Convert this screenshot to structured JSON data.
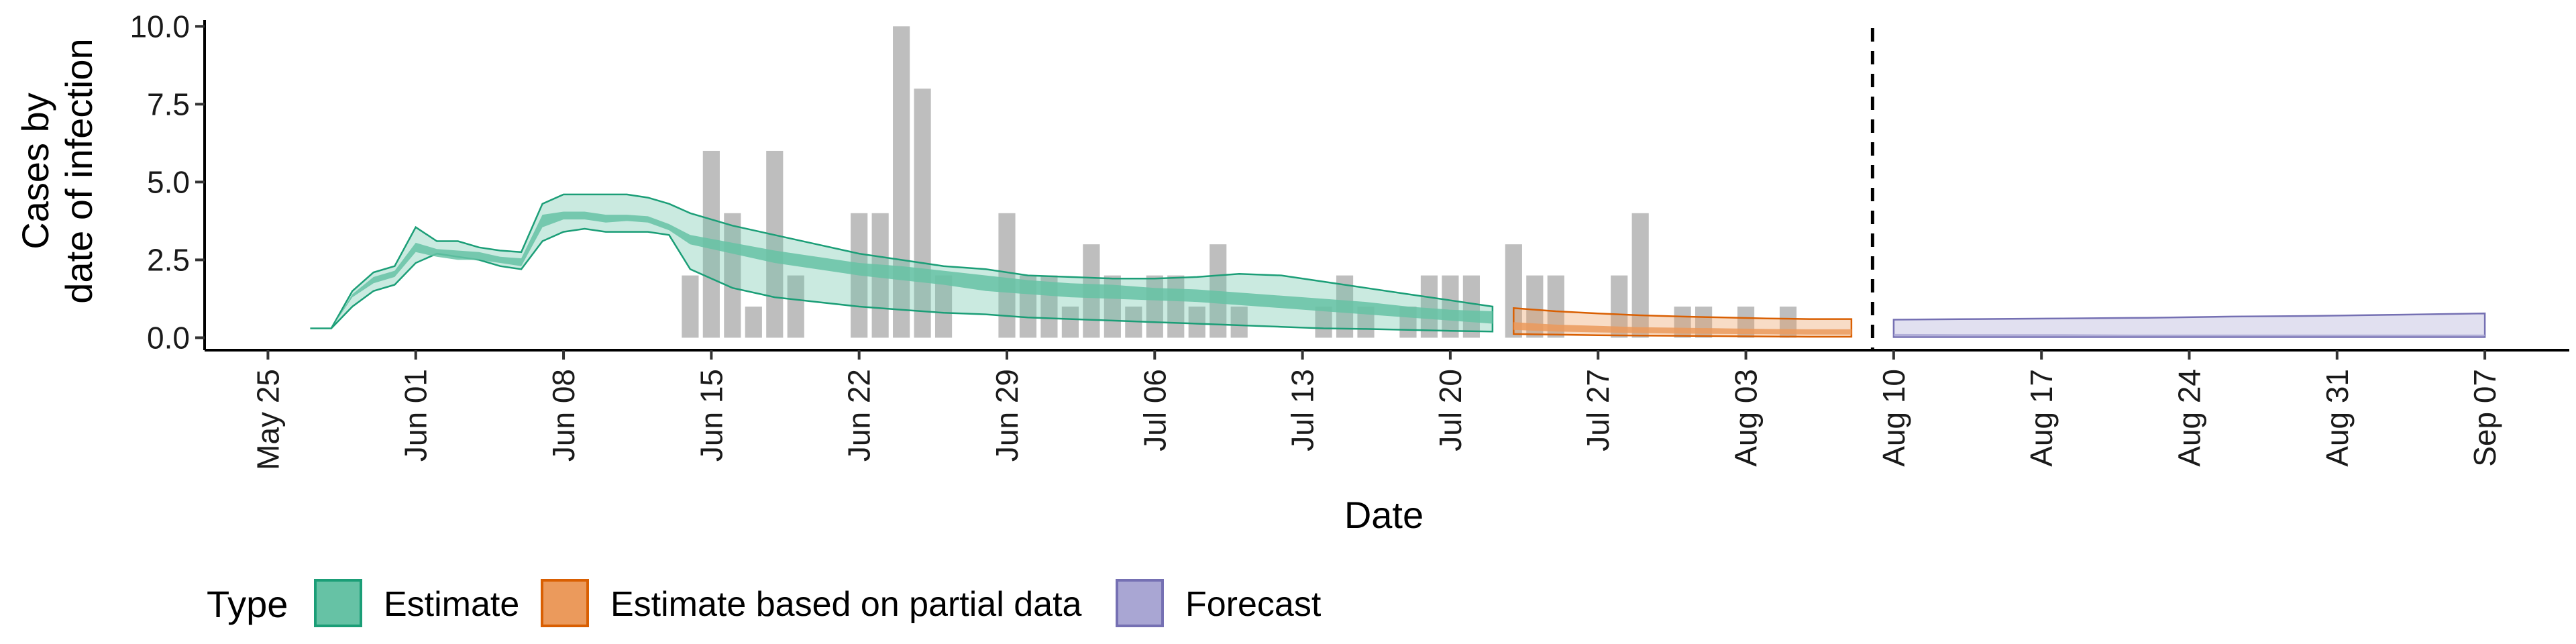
{
  "chart_data": {
    "type": "bar",
    "title": "",
    "xlabel": "Date",
    "ylabel_lines": [
      "Cases by",
      "date of infection"
    ],
    "x_type": "date",
    "xlim": [
      "2020-05-22",
      "2020-09-11"
    ],
    "ylim": [
      -0.4,
      10.2
    ],
    "y_ticks": [
      {
        "value": 0,
        "label": "0.0"
      },
      {
        "value": 2.5,
        "label": "2.5"
      },
      {
        "value": 5,
        "label": "5.0"
      },
      {
        "value": 7.5,
        "label": "7.5"
      },
      {
        "value": 10,
        "label": "10.0"
      }
    ],
    "x_ticks": [
      {
        "date": "2020-05-25",
        "label": "May 25"
      },
      {
        "date": "2020-06-01",
        "label": "Jun 01"
      },
      {
        "date": "2020-06-08",
        "label": "Jun 08"
      },
      {
        "date": "2020-06-15",
        "label": "Jun 15"
      },
      {
        "date": "2020-06-22",
        "label": "Jun 22"
      },
      {
        "date": "2020-06-29",
        "label": "Jun 29"
      },
      {
        "date": "2020-07-06",
        "label": "Jul 06"
      },
      {
        "date": "2020-07-13",
        "label": "Jul 13"
      },
      {
        "date": "2020-07-20",
        "label": "Jul 20"
      },
      {
        "date": "2020-07-27",
        "label": "Jul 27"
      },
      {
        "date": "2020-08-03",
        "label": "Aug 03"
      },
      {
        "date": "2020-08-10",
        "label": "Aug 10"
      },
      {
        "date": "2020-08-17",
        "label": "Aug 17"
      },
      {
        "date": "2020-08-24",
        "label": "Aug 24"
      },
      {
        "date": "2020-08-31",
        "label": "Aug 31"
      },
      {
        "date": "2020-09-07",
        "label": "Sep 07"
      }
    ],
    "forecast_line_date": "2020-08-09",
    "grid": false,
    "legend": {
      "title": "Type",
      "position": "bottom-left",
      "items": [
        {
          "label": "Estimate",
          "fill": "#66c2a5",
          "stroke": "#1b9e77"
        },
        {
          "label": "Estimate based on partial data",
          "fill": "#eb9a5c",
          "stroke": "#d95f02"
        },
        {
          "label": "Forecast",
          "fill": "#a9a6d3",
          "stroke": "#7570b3"
        }
      ]
    },
    "observed_cases": {
      "name": "Observed cases",
      "color": "#bebebe",
      "points": [
        {
          "date": "2020-06-14",
          "value": 2
        },
        {
          "date": "2020-06-15",
          "value": 6
        },
        {
          "date": "2020-06-16",
          "value": 4
        },
        {
          "date": "2020-06-17",
          "value": 1
        },
        {
          "date": "2020-06-18",
          "value": 6
        },
        {
          "date": "2020-06-19",
          "value": 2
        },
        {
          "date": "2020-06-22",
          "value": 4
        },
        {
          "date": "2020-06-23",
          "value": 4
        },
        {
          "date": "2020-06-24",
          "value": 10
        },
        {
          "date": "2020-06-25",
          "value": 8
        },
        {
          "date": "2020-06-26",
          "value": 2
        },
        {
          "date": "2020-06-29",
          "value": 4
        },
        {
          "date": "2020-06-30",
          "value": 2
        },
        {
          "date": "2020-07-01",
          "value": 2
        },
        {
          "date": "2020-07-02",
          "value": 1
        },
        {
          "date": "2020-07-03",
          "value": 3
        },
        {
          "date": "2020-07-04",
          "value": 2
        },
        {
          "date": "2020-07-05",
          "value": 1
        },
        {
          "date": "2020-07-06",
          "value": 2
        },
        {
          "date": "2020-07-07",
          "value": 2
        },
        {
          "date": "2020-07-08",
          "value": 1
        },
        {
          "date": "2020-07-09",
          "value": 3
        },
        {
          "date": "2020-07-10",
          "value": 1
        },
        {
          "date": "2020-07-14",
          "value": 1
        },
        {
          "date": "2020-07-15",
          "value": 2
        },
        {
          "date": "2020-07-16",
          "value": 1
        },
        {
          "date": "2020-07-18",
          "value": 1
        },
        {
          "date": "2020-07-19",
          "value": 2
        },
        {
          "date": "2020-07-20",
          "value": 2
        },
        {
          "date": "2020-07-21",
          "value": 2
        },
        {
          "date": "2020-07-23",
          "value": 3
        },
        {
          "date": "2020-07-24",
          "value": 2
        },
        {
          "date": "2020-07-25",
          "value": 2
        },
        {
          "date": "2020-07-28",
          "value": 2
        },
        {
          "date": "2020-07-29",
          "value": 4
        },
        {
          "date": "2020-07-31",
          "value": 1
        },
        {
          "date": "2020-08-01",
          "value": 1
        },
        {
          "date": "2020-08-03",
          "value": 1
        },
        {
          "date": "2020-08-05",
          "value": 1
        }
      ]
    },
    "bands": [
      {
        "type": "Estimate",
        "dates": [
          "2020-05-27",
          "2020-05-28",
          "2020-05-29",
          "2020-05-30",
          "2020-05-31",
          "2020-06-01",
          "2020-06-02",
          "2020-06-03",
          "2020-06-04",
          "2020-06-05",
          "2020-06-06",
          "2020-06-07",
          "2020-06-08",
          "2020-06-09",
          "2020-06-10",
          "2020-06-11",
          "2020-06-12",
          "2020-06-13",
          "2020-06-14",
          "2020-06-16",
          "2020-06-18",
          "2020-06-20",
          "2020-06-22",
          "2020-06-24",
          "2020-06-26",
          "2020-06-28",
          "2020-06-30",
          "2020-07-02",
          "2020-07-04",
          "2020-07-06",
          "2020-07-08",
          "2020-07-10",
          "2020-07-12",
          "2020-07-14",
          "2020-07-16",
          "2020-07-18",
          "2020-07-20",
          "2020-07-22"
        ],
        "outer_lower": [
          0.3,
          0.3,
          1.0,
          1.5,
          1.7,
          2.4,
          2.7,
          2.6,
          2.5,
          2.3,
          2.2,
          3.1,
          3.4,
          3.5,
          3.4,
          3.4,
          3.4,
          3.3,
          2.2,
          1.6,
          1.3,
          1.15,
          1.0,
          0.9,
          0.8,
          0.75,
          0.65,
          0.6,
          0.55,
          0.5,
          0.45,
          0.4,
          0.35,
          0.3,
          0.28,
          0.25,
          0.22,
          0.2
        ],
        "inner_lower": [
          0.3,
          0.3,
          1.3,
          1.75,
          1.95,
          2.75,
          2.6,
          2.5,
          2.5,
          2.4,
          2.3,
          3.55,
          3.8,
          3.8,
          3.7,
          3.75,
          3.7,
          3.45,
          3.0,
          2.7,
          2.4,
          2.2,
          2.0,
          1.85,
          1.7,
          1.5,
          1.4,
          1.3,
          1.25,
          1.2,
          1.15,
          1.05,
          0.95,
          0.85,
          0.75,
          0.65,
          0.55,
          0.45
        ],
        "inner_upper": [
          0.3,
          0.3,
          1.4,
          1.95,
          2.15,
          3.05,
          2.85,
          2.8,
          2.75,
          2.6,
          2.55,
          3.95,
          4.05,
          4.05,
          3.95,
          3.95,
          3.9,
          3.65,
          3.3,
          3.05,
          2.8,
          2.6,
          2.4,
          2.3,
          2.15,
          2.0,
          1.85,
          1.75,
          1.7,
          1.6,
          1.55,
          1.45,
          1.35,
          1.25,
          1.15,
          1.0,
          0.9,
          0.85
        ],
        "outer_upper": [
          0.3,
          0.3,
          1.5,
          2.1,
          2.3,
          3.55,
          3.1,
          3.1,
          2.9,
          2.8,
          2.75,
          4.3,
          4.6,
          4.6,
          4.6,
          4.6,
          4.5,
          4.3,
          4.0,
          3.6,
          3.3,
          3.0,
          2.7,
          2.5,
          2.3,
          2.2,
          2.0,
          1.95,
          1.9,
          1.9,
          1.95,
          2.05,
          2.0,
          1.8,
          1.6,
          1.4,
          1.2,
          1.0
        ]
      },
      {
        "type": "Estimate based on partial data",
        "dates": [
          "2020-07-23",
          "2020-07-25",
          "2020-07-27",
          "2020-07-29",
          "2020-07-31",
          "2020-08-02",
          "2020-08-04",
          "2020-08-06",
          "2020-08-08"
        ],
        "outer_lower": [
          0.12,
          0.1,
          0.08,
          0.07,
          0.06,
          0.05,
          0.04,
          0.03,
          0.03
        ],
        "inner_lower": [
          0.25,
          0.2,
          0.17,
          0.15,
          0.13,
          0.12,
          0.11,
          0.1,
          0.1
        ],
        "inner_upper": [
          0.5,
          0.42,
          0.38,
          0.34,
          0.32,
          0.3,
          0.28,
          0.27,
          0.27
        ],
        "outer_upper": [
          0.95,
          0.85,
          0.78,
          0.72,
          0.68,
          0.65,
          0.62,
          0.6,
          0.6
        ]
      },
      {
        "type": "Forecast",
        "dates": [
          "2020-08-10",
          "2020-08-14",
          "2020-08-18",
          "2020-08-22",
          "2020-08-26",
          "2020-08-30",
          "2020-09-03",
          "2020-09-07"
        ],
        "outer_lower": [
          0.02,
          0.02,
          0.02,
          0.02,
          0.02,
          0.02,
          0.02,
          0.02
        ],
        "inner_lower": [
          0.05,
          0.05,
          0.05,
          0.05,
          0.05,
          0.05,
          0.05,
          0.05
        ],
        "inner_upper": [
          0.12,
          0.11,
          0.11,
          0.1,
          0.1,
          0.1,
          0.1,
          0.1
        ],
        "outer_upper": [
          0.58,
          0.6,
          0.62,
          0.64,
          0.68,
          0.7,
          0.74,
          0.78
        ]
      }
    ]
  }
}
